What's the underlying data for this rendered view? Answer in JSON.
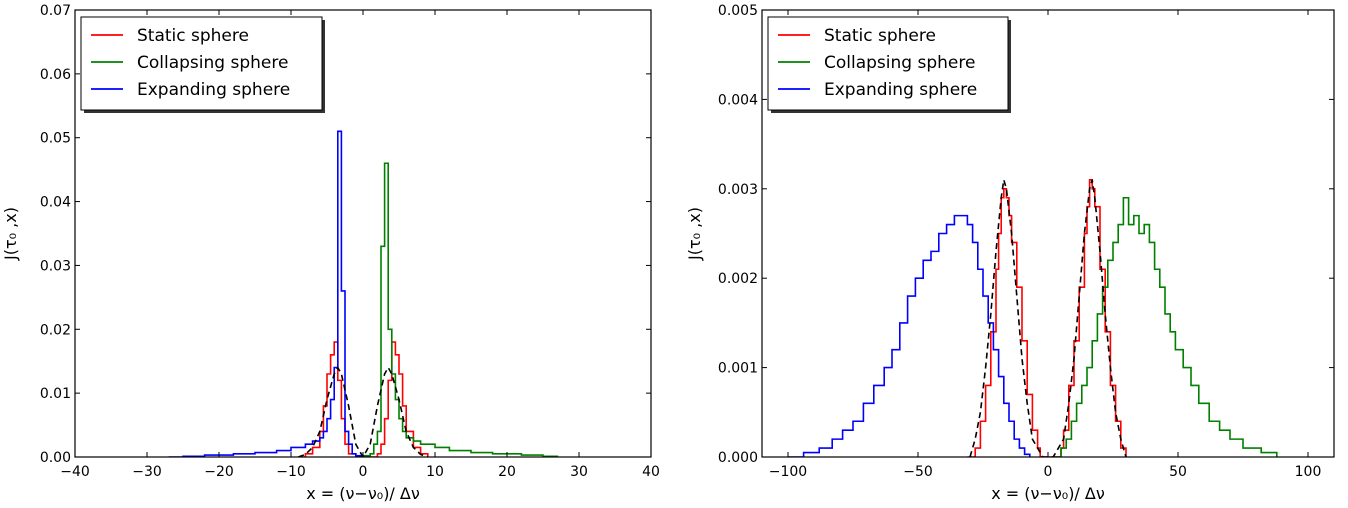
{
  "chart_data": [
    {
      "type": "line",
      "step": true,
      "xlabel": "x = (ν−ν₀)/ Δν",
      "ylabel": "J(τ₀ ,x)",
      "xlim": [
        -40,
        40
      ],
      "ylim": [
        0,
        0.07
      ],
      "xticks": [
        -40,
        -30,
        -20,
        -10,
        0,
        10,
        20,
        30,
        40
      ],
      "xtick_labels": [
        "−40",
        "−30",
        "−20",
        "−10",
        "0",
        "10",
        "20",
        "30",
        "40"
      ],
      "yticks": [
        0,
        0.01,
        0.02,
        0.03,
        0.04,
        0.05,
        0.06,
        0.07
      ],
      "ytick_labels": [
        "0.00",
        "0.01",
        "0.02",
        "0.03",
        "0.04",
        "0.05",
        "0.06",
        "0.07"
      ],
      "legend_position": "top-left",
      "series": [
        {
          "name": "Static sphere",
          "color": "#ff0000",
          "style": "step",
          "points": [
            [
              -9,
              0
            ],
            [
              -8,
              0.0005
            ],
            [
              -7,
              0.0015
            ],
            [
              -6,
              0.004
            ],
            [
              -5.5,
              0.008
            ],
            [
              -5,
              0.013
            ],
            [
              -4.5,
              0.016
            ],
            [
              -4,
              0.018
            ],
            [
              -3.5,
              0.012
            ],
            [
              -3,
              0.006
            ],
            [
              -2.5,
              0.002
            ],
            [
              -2,
              0.0005
            ],
            [
              -1,
              0
            ],
            [
              1,
              0
            ],
            [
              2,
              0.0005
            ],
            [
              2.5,
              0.002
            ],
            [
              3,
              0.006
            ],
            [
              3.5,
              0.012
            ],
            [
              4,
              0.018
            ],
            [
              4.5,
              0.016
            ],
            [
              5,
              0.013
            ],
            [
              5.5,
              0.008
            ],
            [
              6,
              0.004
            ],
            [
              7,
              0.0015
            ],
            [
              8,
              0.0005
            ],
            [
              9,
              0
            ]
          ]
        },
        {
          "name": "Collapsing sphere",
          "color": "#008000",
          "style": "step",
          "points": [
            [
              -1,
              0
            ],
            [
              0,
              0.0002
            ],
            [
              1,
              0.0005
            ],
            [
              1.5,
              0.002
            ],
            [
              2,
              0.004
            ],
            [
              2.5,
              0.033
            ],
            [
              3,
              0.046
            ],
            [
              3.5,
              0.02
            ],
            [
              4,
              0.013
            ],
            [
              4.5,
              0.009
            ],
            [
              5,
              0.006
            ],
            [
              5.5,
              0.004
            ],
            [
              6,
              0.003
            ],
            [
              7,
              0.0025
            ],
            [
              8,
              0.002
            ],
            [
              10,
              0.0015
            ],
            [
              12,
              0.001
            ],
            [
              15,
              0.0007
            ],
            [
              18,
              0.0005
            ],
            [
              22,
              0.0003
            ],
            [
              25,
              0.0001
            ],
            [
              27,
              0
            ]
          ]
        },
        {
          "name": "Expanding sphere",
          "color": "#0000ff",
          "style": "step",
          "points": [
            [
              -27,
              0
            ],
            [
              -25,
              0.0001
            ],
            [
              -22,
              0.0003
            ],
            [
              -18,
              0.0005
            ],
            [
              -15,
              0.0007
            ],
            [
              -12,
              0.001
            ],
            [
              -10,
              0.0015
            ],
            [
              -8,
              0.002
            ],
            [
              -7,
              0.0025
            ],
            [
              -6,
              0.003
            ],
            [
              -5.5,
              0.004
            ],
            [
              -5,
              0.006
            ],
            [
              -4.5,
              0.009
            ],
            [
              -4,
              0.014
            ],
            [
              -3.5,
              0.051
            ],
            [
              -3,
              0.026
            ],
            [
              -2.5,
              0.004
            ],
            [
              -2,
              0.002
            ],
            [
              -1.5,
              0.0005
            ],
            [
              -1,
              0.0002
            ],
            [
              0,
              0
            ]
          ]
        },
        {
          "name": "",
          "color": "#000000",
          "style": "dashed",
          "points": [
            [
              -9,
              0
            ],
            [
              -8,
              0.0004
            ],
            [
              -7,
              0.0015
            ],
            [
              -6,
              0.004
            ],
            [
              -5,
              0.009
            ],
            [
              -4,
              0.013
            ],
            [
              -3.5,
              0.014
            ],
            [
              -3,
              0.013
            ],
            [
              -2,
              0.008
            ],
            [
              -1,
              0.002
            ],
            [
              0,
              0
            ],
            [
              1,
              0.002
            ],
            [
              2,
              0.008
            ],
            [
              3,
              0.013
            ],
            [
              3.5,
              0.014
            ],
            [
              4,
              0.013
            ],
            [
              5,
              0.009
            ],
            [
              6,
              0.004
            ],
            [
              7,
              0.0015
            ],
            [
              8,
              0.0004
            ],
            [
              9,
              0
            ]
          ]
        }
      ]
    },
    {
      "type": "line",
      "step": true,
      "xlabel": "x = (ν−ν₀)/ Δν",
      "ylabel": "J(τ₀ ,x)",
      "xlim": [
        -110,
        110
      ],
      "ylim": [
        0,
        0.005
      ],
      "xticks": [
        -100,
        -50,
        0,
        50,
        100
      ],
      "xtick_labels": [
        "−100",
        "−50",
        "0",
        "50",
        "100"
      ],
      "yticks": [
        0,
        0.001,
        0.002,
        0.003,
        0.004,
        0.005
      ],
      "ytick_labels": [
        "0.000",
        "0.001",
        "0.002",
        "0.003",
        "0.004",
        "0.005"
      ],
      "legend_position": "top-left",
      "series": [
        {
          "name": "Static sphere",
          "color": "#ff0000",
          "style": "step",
          "points": [
            [
              -31,
              0
            ],
            [
              -28,
              0.0001
            ],
            [
              -26,
              0.0004
            ],
            [
              -24,
              0.0008
            ],
            [
              -22,
              0.0014
            ],
            [
              -20,
              0.0021
            ],
            [
              -19,
              0.0025
            ],
            [
              -18,
              0.0029
            ],
            [
              -17,
              0.003
            ],
            [
              -16,
              0.0029
            ],
            [
              -15,
              0.0027
            ],
            [
              -14,
              0.0024
            ],
            [
              -12,
              0.0019
            ],
            [
              -10,
              0.0013
            ],
            [
              -8,
              0.0007
            ],
            [
              -6,
              0.0003
            ],
            [
              -4,
              0.0001
            ],
            [
              -3,
              0
            ],
            [
              3,
              0
            ],
            [
              5,
              0.0001
            ],
            [
              6,
              0.0003
            ],
            [
              8,
              0.0008
            ],
            [
              10,
              0.0013
            ],
            [
              12,
              0.0019
            ],
            [
              14,
              0.0025
            ],
            [
              15,
              0.0028
            ],
            [
              16,
              0.0031
            ],
            [
              17,
              0.003
            ],
            [
              18,
              0.0028
            ],
            [
              20,
              0.0021
            ],
            [
              22,
              0.0014
            ],
            [
              24,
              0.0008
            ],
            [
              26,
              0.0004
            ],
            [
              28,
              0.0001
            ],
            [
              30,
              0
            ]
          ]
        },
        {
          "name": "Collapsing sphere",
          "color": "#008000",
          "style": "step",
          "points": [
            [
              2,
              0
            ],
            [
              5,
              0.0001
            ],
            [
              7,
              0.0002
            ],
            [
              9,
              0.0004
            ],
            [
              11,
              0.0006
            ],
            [
              13,
              0.0008
            ],
            [
              15,
              0.001
            ],
            [
              17,
              0.0013
            ],
            [
              19,
              0.0016
            ],
            [
              21,
              0.0019
            ],
            [
              23,
              0.0022
            ],
            [
              25,
              0.0024
            ],
            [
              27,
              0.0026
            ],
            [
              29,
              0.0029
            ],
            [
              31,
              0.0026
            ],
            [
              33,
              0.0027
            ],
            [
              35,
              0.0025
            ],
            [
              37,
              0.0026
            ],
            [
              39,
              0.0024
            ],
            [
              41,
              0.0021
            ],
            [
              43,
              0.0019
            ],
            [
              45,
              0.0016
            ],
            [
              47,
              0.0014
            ],
            [
              49,
              0.0012
            ],
            [
              52,
              0.001
            ],
            [
              55,
              0.0008
            ],
            [
              58,
              0.0006
            ],
            [
              62,
              0.0004
            ],
            [
              66,
              0.0003
            ],
            [
              70,
              0.0002
            ],
            [
              75,
              0.0001
            ],
            [
              82,
              5e-05
            ],
            [
              88,
              0
            ]
          ]
        },
        {
          "name": "Expanding sphere",
          "color": "#0000ff",
          "style": "step",
          "points": [
            [
              -100,
              0
            ],
            [
              -94,
              5e-05
            ],
            [
              -88,
              0.0001
            ],
            [
              -83,
              0.0002
            ],
            [
              -79,
              0.0003
            ],
            [
              -75,
              0.0004
            ],
            [
              -71,
              0.0006
            ],
            [
              -67,
              0.0008
            ],
            [
              -63,
              0.001
            ],
            [
              -60,
              0.0012
            ],
            [
              -57,
              0.0015
            ],
            [
              -54,
              0.0018
            ],
            [
              -51,
              0.002
            ],
            [
              -48,
              0.0022
            ],
            [
              -45,
              0.0023
            ],
            [
              -42,
              0.0025
            ],
            [
              -39,
              0.0026
            ],
            [
              -36,
              0.0027
            ],
            [
              -33,
              0.0027
            ],
            [
              -31,
              0.0026
            ],
            [
              -29,
              0.0024
            ],
            [
              -27,
              0.0021
            ],
            [
              -25,
              0.0018
            ],
            [
              -23,
              0.0015
            ],
            [
              -21,
              0.0012
            ],
            [
              -19,
              0.0009
            ],
            [
              -17,
              0.0006
            ],
            [
              -15,
              0.0004
            ],
            [
              -13,
              0.0002
            ],
            [
              -11,
              0.0001
            ],
            [
              -9,
              3e-05
            ],
            [
              -7,
              0
            ]
          ]
        },
        {
          "name": "",
          "color": "#000000",
          "style": "dashed",
          "points": [
            [
              -30,
              0
            ],
            [
              -28,
              0.0002
            ],
            [
              -26,
              0.0005
            ],
            [
              -24,
              0.001
            ],
            [
              -22,
              0.0016
            ],
            [
              -20,
              0.0023
            ],
            [
              -18,
              0.0029
            ],
            [
              -17,
              0.0031
            ],
            [
              -16,
              0.003
            ],
            [
              -14,
              0.0025
            ],
            [
              -12,
              0.0018
            ],
            [
              -10,
              0.0011
            ],
            [
              -8,
              0.0006
            ],
            [
              -6,
              0.0002
            ],
            [
              -4,
              0.0001
            ],
            [
              -2,
              0
            ],
            [
              2,
              0
            ],
            [
              4,
              0.0001
            ],
            [
              6,
              0.0002
            ],
            [
              8,
              0.0006
            ],
            [
              10,
              0.0011
            ],
            [
              12,
              0.0018
            ],
            [
              14,
              0.0025
            ],
            [
              16,
              0.003
            ],
            [
              17,
              0.0031
            ],
            [
              18,
              0.0029
            ],
            [
              20,
              0.0023
            ],
            [
              22,
              0.0016
            ],
            [
              24,
              0.001
            ],
            [
              26,
              0.0005
            ],
            [
              28,
              0.0002
            ],
            [
              30,
              0
            ]
          ]
        }
      ]
    }
  ]
}
